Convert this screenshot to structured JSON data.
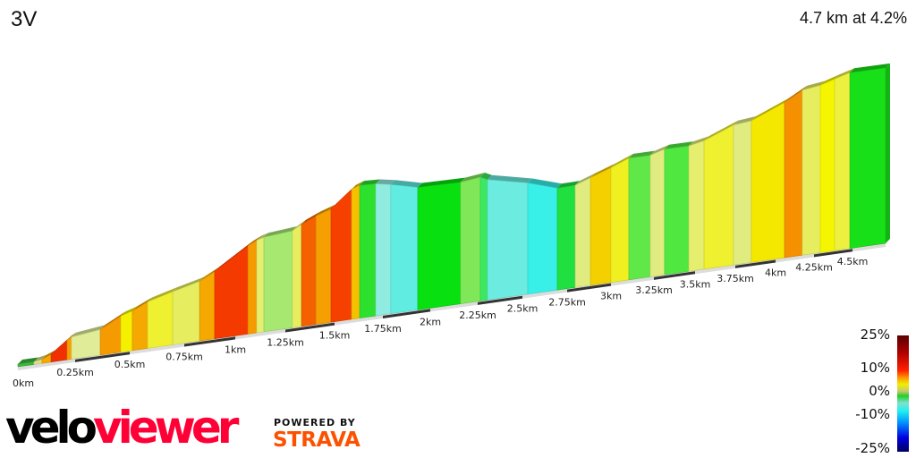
{
  "header": {
    "title": "3V",
    "summary": "4.7 km at 4.2%"
  },
  "legend": {
    "labels": [
      "25%",
      "10%",
      "0%",
      "-10%",
      "-25%"
    ]
  },
  "branding": {
    "logo_part1": "velo",
    "logo_part2": "viewer",
    "powered_by": "POWERED BY",
    "strava": "STRAVA"
  },
  "chart_data": {
    "type": "area",
    "title": "3V",
    "xlabel": "",
    "ylabel": "",
    "x_unit": "km",
    "xlim": [
      0,
      4.7
    ],
    "tick_labels": [
      "0km",
      "0.25km",
      "0.5km",
      "0.75km",
      "1km",
      "1.25km",
      "1.5km",
      "1.75km",
      "2km",
      "2.25km",
      "2.5km",
      "2.75km",
      "3km",
      "3.25km",
      "3.5km",
      "3.75km",
      "4km",
      "4.25km",
      "4.5km"
    ],
    "color_scale": {
      "label_values": [
        25,
        10,
        0,
        -10,
        -25
      ],
      "unit": "%"
    },
    "profile": [
      {
        "km": 0,
        "elev": 0
      },
      {
        "km": 0.07,
        "elev": 0
      },
      {
        "km": 0.105,
        "elev": 1
      },
      {
        "km": 0.145,
        "elev": 4
      },
      {
        "km": 0.215,
        "elev": 14
      },
      {
        "km": 0.234,
        "elev": 16
      },
      {
        "km": 0.365,
        "elev": 19
      },
      {
        "km": 0.459,
        "elev": 28
      },
      {
        "km": 0.512,
        "elev": 31
      },
      {
        "km": 0.582,
        "elev": 37
      },
      {
        "km": 0.697,
        "elev": 43
      },
      {
        "km": 0.825,
        "elev": 49
      },
      {
        "km": 0.899,
        "elev": 56
      },
      {
        "km": 1.063,
        "elev": 75
      },
      {
        "km": 1.107,
        "elev": 79
      },
      {
        "km": 1.143,
        "elev": 81
      },
      {
        "km": 1.286,
        "elev": 84
      },
      {
        "km": 1.332,
        "elev": 89
      },
      {
        "km": 1.405,
        "elev": 95
      },
      {
        "km": 1.482,
        "elev": 100
      },
      {
        "km": 1.588,
        "elev": 116
      },
      {
        "km": 1.63,
        "elev": 119
      },
      {
        "km": 1.713,
        "elev": 119
      },
      {
        "km": 1.792,
        "elev": 117
      },
      {
        "km": 1.934,
        "elev": 112
      },
      {
        "km": 2.16,
        "elev": 113
      },
      {
        "km": 2.265,
        "elev": 116
      },
      {
        "km": 2.305,
        "elev": 113
      },
      {
        "km": 2.53,
        "elev": 106
      },
      {
        "km": 2.695,
        "elev": 98
      },
      {
        "km": 2.796,
        "elev": 99
      },
      {
        "km": 2.883,
        "elev": 105
      },
      {
        "km": 3.0,
        "elev": 113
      },
      {
        "km": 3.104,
        "elev": 121
      },
      {
        "km": 3.229,
        "elev": 122
      },
      {
        "km": 3.315,
        "elev": 127
      },
      {
        "km": 3.462,
        "elev": 128
      },
      {
        "km": 3.556,
        "elev": 132
      },
      {
        "km": 3.739,
        "elev": 146
      },
      {
        "km": 3.85,
        "elev": 149
      },
      {
        "km": 4.058,
        "elev": 166
      },
      {
        "km": 4.174,
        "elev": 178
      },
      {
        "km": 4.291,
        "elev": 182
      },
      {
        "km": 4.384,
        "elev": 188
      },
      {
        "km": 4.483,
        "elev": 194
      },
      {
        "km": 4.715,
        "elev": 197
      }
    ],
    "segment_colors": [
      "#3cb93c",
      "#e0e08a",
      "#f5a800",
      "#f03000",
      "#f5a000",
      "#e0ec98",
      "#f59a00",
      "#f5f000",
      "#f5a800",
      "#eef030",
      "#e6ee60",
      "#f5a800",
      "#f53a00",
      "#f59a00",
      "#e6ee70",
      "#a6e870",
      "#e6ee60",
      "#f56000",
      "#f5a000",
      "#f54000",
      "#f5c000",
      "#2ee02e",
      "#90ece0",
      "#60ece0",
      "#08e010",
      "#80e858",
      "#3ce860",
      "#6cece0",
      "#38f0e8",
      "#20e040",
      "#e0ec80",
      "#f5d000",
      "#f0f020",
      "#60e848",
      "#e0ec80",
      "#50e840",
      "#e6ee70",
      "#eef030",
      "#e0ec80",
      "#f5e800",
      "#f59000",
      "#e6ee60",
      "#f5f500",
      "#eef040",
      "#18e018"
    ]
  }
}
